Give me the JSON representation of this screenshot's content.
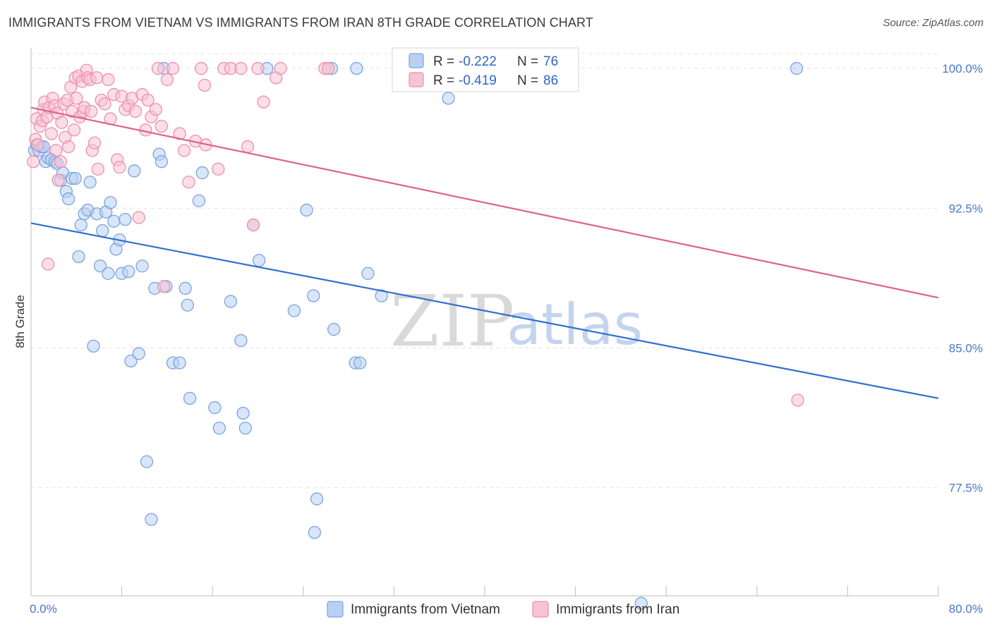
{
  "header": {
    "title": "IMMIGRANTS FROM VIETNAM VS IMMIGRANTS FROM IRAN 8TH GRADE CORRELATION CHART",
    "source": "Source: ZipAtlas.com"
  },
  "watermark": {
    "zip": "ZIP",
    "atlas": "atlas"
  },
  "colors": {
    "vietnam_fill": "#b9d0f2",
    "vietnam_stroke": "#7aa4e0",
    "vietnam_line": "#2f6fcf",
    "iran_fill": "#f8c3d4",
    "iran_stroke": "#ee8fae",
    "iran_line": "#e0608e",
    "grid": "#e2e2e2",
    "tick_label": "#4a76c6"
  },
  "chart_data": {
    "type": "scatter",
    "title": "IMMIGRANTS FROM VIETNAM VS IMMIGRANTS FROM IRAN 8TH GRADE CORRELATION CHART",
    "xlabel": "",
    "ylabel": "8th Grade",
    "xlim": [
      0,
      80
    ],
    "ylim": [
      71.7,
      101.1
    ],
    "x_tick_labels": [
      "0.0%",
      "80.0%"
    ],
    "y_ticks": [
      77.5,
      85.0,
      92.5,
      100.0
    ],
    "y_tick_labels": [
      "77.5%",
      "85.0%",
      "92.5%",
      "100.0%"
    ],
    "grid": true,
    "legend_position": "top-center",
    "legend": [
      {
        "r_label": "R = ",
        "r_value": "-0.222",
        "n_label": "N = ",
        "n_value": "76"
      },
      {
        "r_label": "R = ",
        "r_value": "-0.419",
        "n_label": "N = ",
        "n_value": "86"
      }
    ],
    "series": [
      {
        "name": "Immigrants from Vietnam",
        "trend": {
          "x": [
            0,
            80
          ],
          "y": [
            91.7,
            82.3
          ]
        },
        "points": [
          [
            0.3,
            95.6
          ],
          [
            0.5,
            95.9
          ],
          [
            0.7,
            95.6
          ],
          [
            0.9,
            95.8
          ],
          [
            1.1,
            95.8
          ],
          [
            1.3,
            95.0
          ],
          [
            1.5,
            95.2
          ],
          [
            1.8,
            95.1
          ],
          [
            2.1,
            95.0
          ],
          [
            2.3,
            94.9
          ],
          [
            2.6,
            94.0
          ],
          [
            2.8,
            94.4
          ],
          [
            3.1,
            93.4
          ],
          [
            3.3,
            93.0
          ],
          [
            3.6,
            94.1
          ],
          [
            3.9,
            94.1
          ],
          [
            4.2,
            89.9
          ],
          [
            4.4,
            91.6
          ],
          [
            4.7,
            92.2
          ],
          [
            5.0,
            92.4
          ],
          [
            5.2,
            93.9
          ],
          [
            5.5,
            85.1
          ],
          [
            5.8,
            92.2
          ],
          [
            6.1,
            89.4
          ],
          [
            6.3,
            91.3
          ],
          [
            6.6,
            92.3
          ],
          [
            6.8,
            89.0
          ],
          [
            7.0,
            92.8
          ],
          [
            7.3,
            91.8
          ],
          [
            7.5,
            90.3
          ],
          [
            7.8,
            90.8
          ],
          [
            8.0,
            89.0
          ],
          [
            8.3,
            91.9
          ],
          [
            8.6,
            89.1
          ],
          [
            8.8,
            84.3
          ],
          [
            9.1,
            94.5
          ],
          [
            9.5,
            84.7
          ],
          [
            9.8,
            89.4
          ],
          [
            10.2,
            78.9
          ],
          [
            10.6,
            75.8
          ],
          [
            10.9,
            88.2
          ],
          [
            11.3,
            95.4
          ],
          [
            11.5,
            95.0
          ],
          [
            11.7,
            100.0
          ],
          [
            11.9,
            88.3
          ],
          [
            12.5,
            84.2
          ],
          [
            13.1,
            84.2
          ],
          [
            13.6,
            88.2
          ],
          [
            13.8,
            87.3
          ],
          [
            14.0,
            82.3
          ],
          [
            14.8,
            92.9
          ],
          [
            15.1,
            94.4
          ],
          [
            16.2,
            81.8
          ],
          [
            16.6,
            80.7
          ],
          [
            17.6,
            87.5
          ],
          [
            18.5,
            85.4
          ],
          [
            18.7,
            81.5
          ],
          [
            18.9,
            80.7
          ],
          [
            19.6,
            91.6
          ],
          [
            20.1,
            89.7
          ],
          [
            20.8,
            100.0
          ],
          [
            23.2,
            87.0
          ],
          [
            24.3,
            92.4
          ],
          [
            24.9,
            87.8
          ],
          [
            25.2,
            76.9
          ],
          [
            25.0,
            75.1
          ],
          [
            26.5,
            100.0
          ],
          [
            26.7,
            86.0
          ],
          [
            28.7,
            100.0
          ],
          [
            28.6,
            84.2
          ],
          [
            29.0,
            84.2
          ],
          [
            29.7,
            89.0
          ],
          [
            30.9,
            87.8
          ],
          [
            36.8,
            98.4
          ],
          [
            53.8,
            71.3
          ],
          [
            67.5,
            100.0
          ]
        ]
      },
      {
        "name": "Immigrants from Iran",
        "trend": {
          "x": [
            0,
            80
          ],
          "y": [
            97.9,
            87.7
          ]
        },
        "points": [
          [
            0.2,
            95.0
          ],
          [
            0.4,
            96.2
          ],
          [
            0.5,
            97.3
          ],
          [
            0.6,
            95.9
          ],
          [
            0.8,
            96.9
          ],
          [
            1.0,
            97.2
          ],
          [
            1.1,
            97.8
          ],
          [
            1.2,
            98.2
          ],
          [
            1.4,
            97.4
          ],
          [
            1.5,
            89.5
          ],
          [
            1.6,
            97.9
          ],
          [
            1.8,
            96.5
          ],
          [
            1.9,
            98.4
          ],
          [
            2.1,
            98.0
          ],
          [
            2.2,
            95.6
          ],
          [
            2.3,
            97.6
          ],
          [
            2.4,
            94.0
          ],
          [
            2.6,
            95.0
          ],
          [
            2.7,
            97.1
          ],
          [
            2.9,
            98.1
          ],
          [
            3.0,
            96.3
          ],
          [
            3.2,
            98.3
          ],
          [
            3.3,
            95.8
          ],
          [
            3.5,
            99.0
          ],
          [
            3.6,
            97.7
          ],
          [
            3.8,
            96.7
          ],
          [
            3.9,
            99.5
          ],
          [
            4.0,
            98.4
          ],
          [
            4.2,
            99.6
          ],
          [
            4.3,
            97.4
          ],
          [
            4.5,
            99.3
          ],
          [
            4.6,
            97.7
          ],
          [
            4.7,
            97.9
          ],
          [
            4.9,
            99.9
          ],
          [
            5.0,
            99.5
          ],
          [
            5.2,
            99.4
          ],
          [
            5.3,
            97.7
          ],
          [
            5.4,
            95.6
          ],
          [
            5.6,
            96.0
          ],
          [
            5.8,
            99.5
          ],
          [
            5.9,
            94.6
          ],
          [
            6.2,
            98.3
          ],
          [
            6.5,
            98.1
          ],
          [
            6.8,
            99.4
          ],
          [
            7.0,
            97.3
          ],
          [
            7.3,
            98.6
          ],
          [
            7.6,
            95.1
          ],
          [
            7.8,
            94.7
          ],
          [
            8.0,
            98.5
          ],
          [
            8.3,
            97.8
          ],
          [
            8.6,
            98.0
          ],
          [
            8.9,
            98.4
          ],
          [
            9.2,
            97.7
          ],
          [
            9.5,
            92.0
          ],
          [
            9.8,
            98.6
          ],
          [
            10.1,
            96.7
          ],
          [
            10.3,
            98.3
          ],
          [
            10.6,
            97.4
          ],
          [
            11.0,
            97.8
          ],
          [
            11.2,
            100.0
          ],
          [
            11.5,
            96.9
          ],
          [
            11.7,
            88.3
          ],
          [
            12.0,
            99.4
          ],
          [
            12.5,
            100.0
          ],
          [
            13.1,
            96.5
          ],
          [
            13.5,
            95.6
          ],
          [
            13.9,
            93.9
          ],
          [
            14.5,
            96.1
          ],
          [
            15.0,
            100.0
          ],
          [
            15.3,
            99.1
          ],
          [
            15.4,
            95.9
          ],
          [
            16.5,
            94.6
          ],
          [
            17.0,
            100.0
          ],
          [
            17.6,
            100.0
          ],
          [
            18.5,
            100.0
          ],
          [
            19.1,
            95.8
          ],
          [
            19.6,
            91.6
          ],
          [
            20.0,
            100.0
          ],
          [
            20.5,
            98.2
          ],
          [
            21.6,
            99.5
          ],
          [
            22.0,
            100.0
          ],
          [
            25.9,
            100.0
          ],
          [
            26.2,
            100.0
          ],
          [
            37.0,
            100.0
          ],
          [
            42.1,
            100.0
          ],
          [
            67.6,
            82.2
          ]
        ]
      }
    ]
  }
}
